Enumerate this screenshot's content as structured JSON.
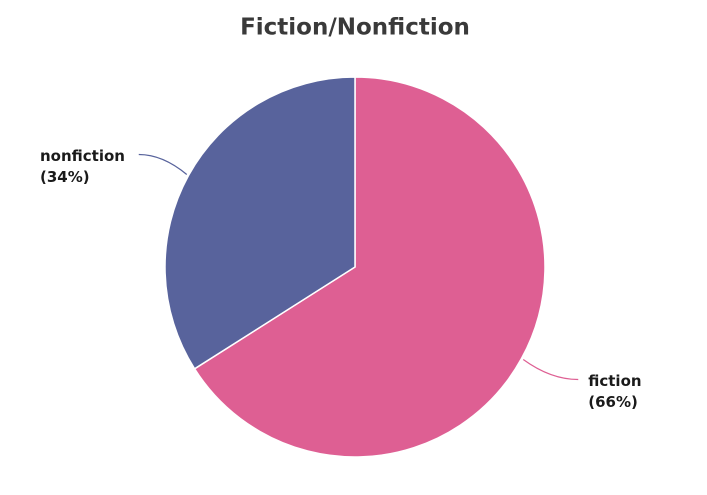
{
  "chart_data": {
    "type": "pie",
    "title": "Fiction/Nonfiction",
    "categories": [
      "fiction",
      "nonfiction"
    ],
    "values": [
      66,
      34
    ],
    "value_labels": [
      "(66%)",
      "(34%)"
    ],
    "colors": [
      "#de5f93",
      "#58639c"
    ]
  }
}
